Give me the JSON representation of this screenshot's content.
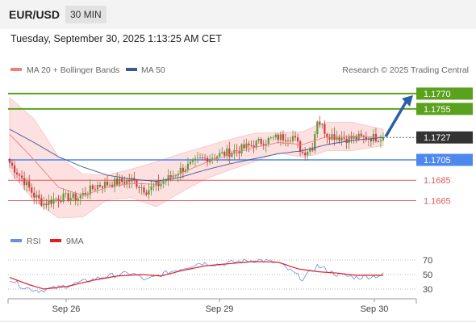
{
  "header": {
    "pair": "EUR/USD",
    "timeframe": "30 MIN"
  },
  "datetime": "Tuesday, September 30, 2025 1:13:25 AM CET",
  "legend": {
    "bb_label": "MA 20 + Bollinger Bands",
    "ma50_label": "MA 50",
    "credit": "Research © 2025 Trading Central"
  },
  "rsi_legend": {
    "rsi_label": "RSI",
    "ma_label": "9MA"
  },
  "colors": {
    "bb_fill": "#fde0e0",
    "ma20": "#e88080",
    "ma50": "#3a5a96",
    "resistance": "#5aa21e",
    "support": "#4d88ee",
    "minor_support": "#e45a5a",
    "last_price": "#333333",
    "arrow": "#2a5fa8",
    "up_candle": "#5b9a39",
    "down_candle": "#cc3c3c",
    "rsi": "#6b8ee0",
    "rsi_ma": "#e02020"
  },
  "chart_data": [
    {
      "type": "candlestick",
      "title": "EUR/USD",
      "x_ticks": [
        "Sep 26",
        "Sep 29",
        "Sep 30"
      ],
      "ylim": [
        1.164,
        1.1785
      ],
      "levels": [
        {
          "value": 1.177,
          "label": "1.1770",
          "kind": "resistance"
        },
        {
          "value": 1.1755,
          "label": "1.1755",
          "kind": "resistance"
        },
        {
          "value": 1.1727,
          "label": "1.1727",
          "kind": "last_price"
        },
        {
          "value": 1.1705,
          "label": "1.1705",
          "kind": "support"
        },
        {
          "value": 1.1685,
          "label": "1.1685",
          "kind": "minor_support"
        },
        {
          "value": 1.1665,
          "label": "1.1665",
          "kind": "minor_support"
        }
      ],
      "close_keypoints": [
        [
          0,
          1.1702
        ],
        [
          6,
          1.1684
        ],
        [
          10,
          1.167
        ],
        [
          14,
          1.1662
        ],
        [
          20,
          1.1668
        ],
        [
          28,
          1.1668
        ],
        [
          36,
          1.168
        ],
        [
          44,
          1.1683
        ],
        [
          50,
          1.1685
        ],
        [
          56,
          1.1675
        ],
        [
          62,
          1.1682
        ],
        [
          70,
          1.1695
        ],
        [
          78,
          1.1705
        ],
        [
          86,
          1.171
        ],
        [
          94,
          1.1715
        ],
        [
          102,
          1.1722
        ],
        [
          110,
          1.1727
        ],
        [
          116,
          1.1728
        ],
        [
          120,
          1.1712
        ],
        [
          124,
          1.1718
        ],
        [
          126,
          1.1745
        ],
        [
          130,
          1.173
        ],
        [
          138,
          1.1726
        ],
        [
          146,
          1.1727
        ],
        [
          153,
          1.1727
        ]
      ],
      "candle_count": 154,
      "ma20_keypoints": [
        [
          0,
          1.173
        ],
        [
          10,
          1.1705
        ],
        [
          20,
          1.1678
        ],
        [
          30,
          1.167
        ],
        [
          40,
          1.1678
        ],
        [
          50,
          1.1682
        ],
        [
          60,
          1.1681
        ],
        [
          70,
          1.1692
        ],
        [
          80,
          1.1702
        ],
        [
          90,
          1.171
        ],
        [
          100,
          1.1717
        ],
        [
          110,
          1.1722
        ],
        [
          120,
          1.172
        ],
        [
          130,
          1.1728
        ],
        [
          140,
          1.1728
        ],
        [
          153,
          1.1727
        ]
      ],
      "ma50_keypoints": [
        [
          0,
          1.1735
        ],
        [
          10,
          1.1722
        ],
        [
          20,
          1.1708
        ],
        [
          30,
          1.1698
        ],
        [
          40,
          1.169
        ],
        [
          50,
          1.1686
        ],
        [
          60,
          1.1684
        ],
        [
          70,
          1.1688
        ],
        [
          80,
          1.1695
        ],
        [
          90,
          1.1701
        ],
        [
          100,
          1.1706
        ],
        [
          110,
          1.1711
        ],
        [
          120,
          1.1714
        ],
        [
          130,
          1.172
        ],
        [
          140,
          1.1724
        ],
        [
          153,
          1.1727
        ]
      ],
      "bb_width_keypoints": [
        [
          0,
          0.0036
        ],
        [
          10,
          0.004
        ],
        [
          20,
          0.003
        ],
        [
          40,
          0.0012
        ],
        [
          50,
          0.0014
        ],
        [
          60,
          0.0022
        ],
        [
          80,
          0.0016
        ],
        [
          100,
          0.0014
        ],
        [
          110,
          0.001
        ],
        [
          125,
          0.0014
        ],
        [
          140,
          0.0014
        ],
        [
          153,
          0.0008
        ]
      ],
      "target_arrow": {
        "from": 1.1727,
        "to": 1.177
      }
    },
    {
      "type": "line",
      "title": "RSI",
      "yticks": [
        30,
        50,
        70
      ],
      "ylim": [
        20,
        80
      ],
      "series": [
        {
          "name": "RSI",
          "keypoints": [
            [
              0,
              44
            ],
            [
              6,
              32
            ],
            [
              12,
              28
            ],
            [
              20,
              32
            ],
            [
              30,
              40
            ],
            [
              40,
              48
            ],
            [
              50,
              52
            ],
            [
              56,
              42
            ],
            [
              62,
              50
            ],
            [
              70,
              58
            ],
            [
              78,
              66
            ],
            [
              86,
              64
            ],
            [
              94,
              68
            ],
            [
              102,
              70
            ],
            [
              110,
              66
            ],
            [
              120,
              44
            ],
            [
              126,
              62
            ],
            [
              134,
              50
            ],
            [
              142,
              46
            ],
            [
              150,
              48
            ],
            [
              153,
              50
            ]
          ]
        },
        {
          "name": "9MA",
          "keypoints": [
            [
              0,
              46
            ],
            [
              8,
              36
            ],
            [
              14,
              30
            ],
            [
              24,
              34
            ],
            [
              34,
              42
            ],
            [
              44,
              48
            ],
            [
              54,
              50
            ],
            [
              62,
              48
            ],
            [
              70,
              55
            ],
            [
              80,
              62
            ],
            [
              90,
              65
            ],
            [
              100,
              68
            ],
            [
              110,
              67
            ],
            [
              118,
              58
            ],
            [
              126,
              54
            ],
            [
              134,
              52
            ],
            [
              142,
              49
            ],
            [
              153,
              49
            ]
          ]
        }
      ]
    }
  ]
}
